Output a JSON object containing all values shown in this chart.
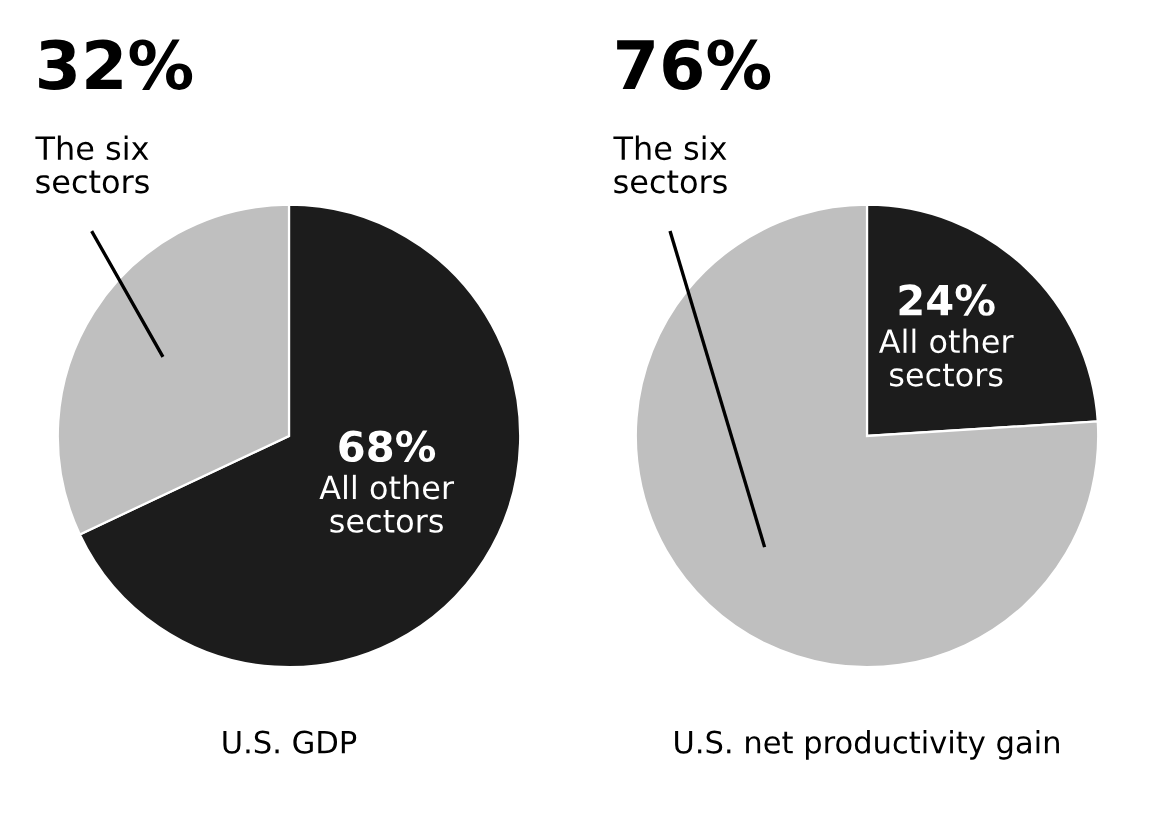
{
  "chart_data": [
    {
      "type": "pie",
      "xlabel": "U.S. GDP",
      "categories": [
        "All other\nsectors",
        "The six\nsectors"
      ],
      "values": [
        68,
        32
      ],
      "colors": [
        "#1c1c1c",
        "#bfbfbf"
      ],
      "value_labels": [
        "68%",
        "32%"
      ]
    },
    {
      "type": "pie",
      "xlabel": "U.S. net productivity gain",
      "categories": [
        "All other\nsectors",
        "The six\nsectors"
      ],
      "values": [
        24,
        76
      ],
      "colors": [
        "#1c1c1c",
        "#bfbfbf"
      ],
      "value_labels": [
        "24%",
        "76%"
      ]
    }
  ]
}
